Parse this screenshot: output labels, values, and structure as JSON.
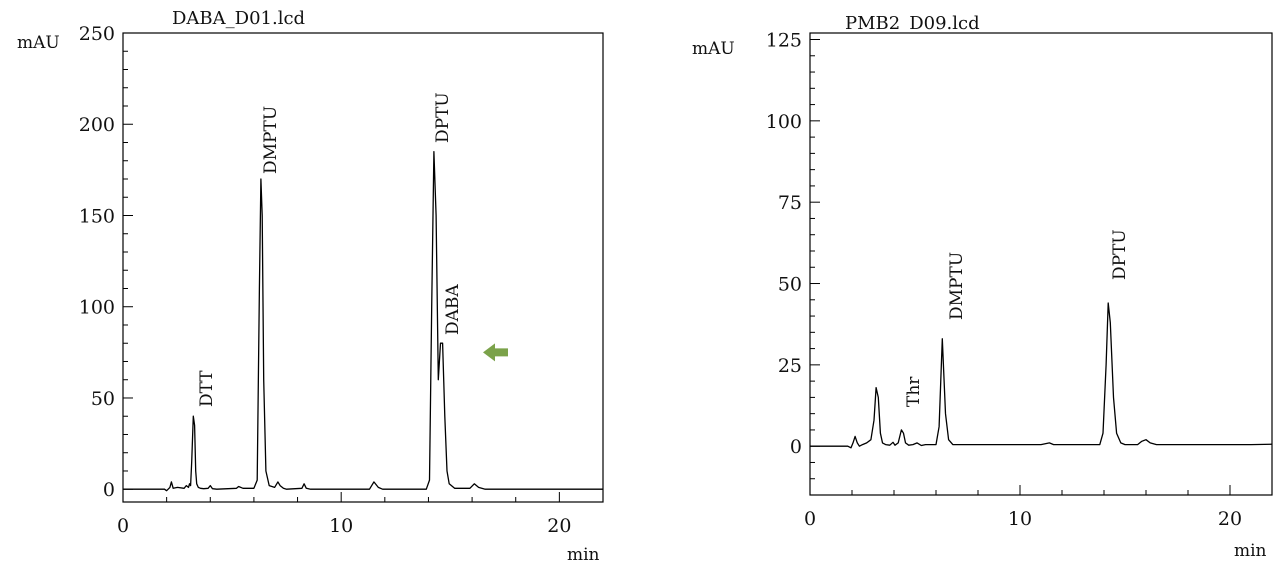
{
  "chart_data": [
    {
      "type": "line",
      "title": "DABA_D01.lcd",
      "xlabel": "min",
      "ylabel": "mAU",
      "xlim": [
        0,
        22
      ],
      "ylim": [
        -7,
        250
      ],
      "x_ticks": [
        0,
        10,
        20
      ],
      "y_ticks": [
        0,
        50,
        100,
        150,
        200,
        250
      ],
      "grid": false,
      "series": [
        {
          "x": [
            0,
            1.9,
            2.0,
            2.15,
            2.22,
            2.3,
            2.5,
            2.8,
            2.9,
            3.0,
            3.05,
            3.1,
            3.15,
            3.22,
            3.28,
            3.33,
            3.38,
            3.45,
            3.55,
            3.7,
            3.9,
            4.0,
            4.1,
            4.3,
            5.2,
            5.3,
            5.5,
            6.0,
            6.15,
            6.25,
            6.32,
            6.38,
            6.45,
            6.55,
            6.7,
            6.95,
            7.1,
            7.2,
            7.35,
            7.5,
            8.2,
            8.3,
            8.4,
            8.6,
            11.3,
            11.5,
            11.7,
            11.9,
            13.9,
            14.05,
            14.15,
            14.25,
            14.35,
            14.45,
            14.55,
            14.65,
            14.75,
            14.85,
            14.95,
            15.2,
            15.9,
            16.1,
            16.3,
            16.6,
            18.0,
            22.0
          ],
          "y": [
            0,
            0,
            -0.8,
            1,
            4,
            0.5,
            1,
            0.5,
            2,
            1,
            3,
            2,
            15,
            40,
            35,
            10,
            3,
            1,
            0.5,
            0.3,
            0.5,
            2,
            0.3,
            0,
            0.5,
            1.5,
            0.5,
            0.5,
            5,
            110,
            170,
            150,
            60,
            10,
            2,
            1,
            4,
            2,
            0.5,
            0,
            0.5,
            3,
            0.5,
            0,
            0,
            4,
            1,
            0,
            0,
            5,
            100,
            185,
            150,
            60,
            80,
            80,
            40,
            10,
            3,
            0.5,
            0.5,
            3,
            1,
            0,
            0,
            0
          ]
        }
      ],
      "peak_labels": [
        {
          "text": "DTT",
          "x": 3.3
        },
        {
          "text": "DMPTU",
          "x": 6.35
        },
        {
          "text": "DPTU",
          "x": 14.25
        },
        {
          "text": "DABA",
          "x": 14.65
        }
      ],
      "annotation": {
        "type": "arrow",
        "target": "DABA",
        "color": "#7ba24a",
        "at": [
          16.5,
          75
        ]
      }
    },
    {
      "type": "line",
      "title": "PMB2_D09.lcd",
      "xlabel": "min",
      "ylabel": "mAU",
      "xlim": [
        0,
        22
      ],
      "ylim": [
        -15,
        127
      ],
      "x_ticks": [
        0,
        10,
        20
      ],
      "y_ticks": [
        0,
        25,
        50,
        75,
        100,
        125
      ],
      "grid": false,
      "series": [
        {
          "x": [
            0,
            1.8,
            1.95,
            2.05,
            2.15,
            2.25,
            2.35,
            2.5,
            2.7,
            2.9,
            3.05,
            3.15,
            3.25,
            3.35,
            3.45,
            3.6,
            3.8,
            3.95,
            4.05,
            4.2,
            4.35,
            4.45,
            4.55,
            4.7,
            4.9,
            5.1,
            5.3,
            5.5,
            6.0,
            6.15,
            6.3,
            6.45,
            6.6,
            6.8,
            11.0,
            11.4,
            11.6,
            13.8,
            13.95,
            14.1,
            14.2,
            14.3,
            14.45,
            14.6,
            14.8,
            15.0,
            15.6,
            15.8,
            16.0,
            16.2,
            16.5,
            19.0,
            21.0,
            22.0
          ],
          "y": [
            0,
            0,
            -0.5,
            1,
            3,
            1,
            0,
            0.5,
            1,
            2,
            8,
            18,
            15,
            4,
            1,
            0.5,
            0.3,
            1.2,
            0.3,
            1,
            5,
            4,
            1,
            0.3,
            0.5,
            1,
            0.2,
            0.5,
            0.5,
            6,
            33,
            10,
            2,
            0.5,
            0.5,
            1,
            0.5,
            0.5,
            4,
            25,
            44,
            38,
            15,
            4,
            1,
            0.5,
            0.5,
            1.5,
            2,
            1,
            0.5,
            0.5,
            0.5,
            0.6
          ]
        }
      ],
      "peak_labels": [
        {
          "text": "Thr",
          "x": 4.45
        },
        {
          "text": "DMPTU",
          "x": 6.3
        },
        {
          "text": "DPTU",
          "x": 14.2
        }
      ]
    }
  ]
}
